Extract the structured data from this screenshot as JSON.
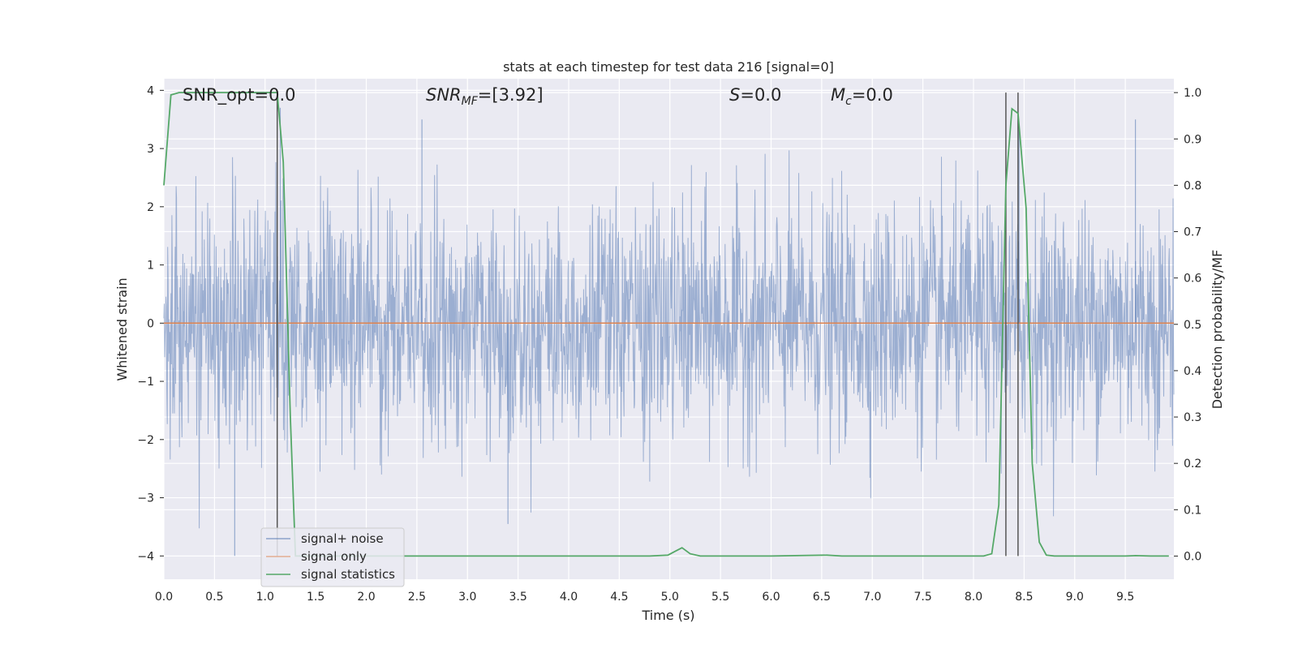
{
  "chart_data": {
    "type": "line",
    "title": "stats at each timestep for test data 216 [signal=0]",
    "xlabel": "Time (s)",
    "ylabel_left": "Whitened strain",
    "ylabel_right": "Detection probability/MF",
    "xlim": [
      0.0,
      9.98
    ],
    "ylim_left": [
      -4.4,
      4.2
    ],
    "ylim_right": [
      -0.05,
      1.03
    ],
    "x_ticks": [
      "0.0",
      "0.5",
      "1.0",
      "1.5",
      "2.0",
      "2.5",
      "3.0",
      "3.5",
      "4.0",
      "4.5",
      "5.0",
      "5.5",
      "6.0",
      "6.5",
      "7.0",
      "7.5",
      "8.0",
      "8.5",
      "9.0",
      "9.5"
    ],
    "y_ticks_left": [
      "4",
      "3",
      "2",
      "1",
      "0",
      "−1",
      "−2",
      "−3",
      "−4"
    ],
    "y_ticks_right": [
      "1.0",
      "0.9",
      "0.8",
      "0.7",
      "0.6",
      "0.5",
      "0.4",
      "0.3",
      "0.2",
      "0.1",
      "0.0"
    ],
    "grid": true,
    "legend_position": "lower-left",
    "background": "#eaeaf2",
    "colors": {
      "signal_noise": "#4c72b0",
      "signal_only": "#dd8452",
      "statistics": "#55a868",
      "marker_lines": "#555555"
    },
    "annotations": {
      "snr_opt": {
        "prefix": "SNR_opt",
        "value": "=0.0"
      },
      "snr_mf": {
        "symbol": "SNR",
        "sub": "MF",
        "value": "=[3.92]"
      },
      "s": {
        "symbol": "S",
        "value": "=0.0"
      },
      "mc": {
        "symbol": "M",
        "sub": "c",
        "value": "=0.0"
      }
    },
    "series": [
      {
        "name": "signal+ noise",
        "axis": "left",
        "style": "noise band",
        "amplitude_std": 1.0,
        "envelope_typical": [
          -1.6,
          1.6
        ],
        "peak_extremes": [
          {
            "x": 0.7,
            "y": -4.0
          },
          {
            "x": 3.4,
            "y": -3.45
          },
          {
            "x": 1.15,
            "y": 3.7
          },
          {
            "x": 9.6,
            "y": 3.5
          },
          {
            "x": 2.55,
            "y": 3.5
          },
          {
            "x": 8.45,
            "y": 3.4
          }
        ]
      },
      {
        "name": "signal only",
        "axis": "left",
        "x": [
          0.0,
          9.98
        ],
        "y": [
          0.0,
          0.0
        ]
      },
      {
        "name": "signal statistics",
        "axis": "right",
        "x": [
          0.0,
          0.07,
          0.15,
          0.3,
          0.6,
          1.0,
          1.12,
          1.18,
          1.25,
          1.3,
          1.5,
          2.0,
          3.0,
          4.0,
          4.8,
          4.98,
          5.05,
          5.12,
          5.2,
          5.3,
          6.0,
          6.55,
          6.7,
          7.5,
          8.1,
          8.18,
          8.25,
          8.32,
          8.38,
          8.44,
          8.52,
          8.58,
          8.65,
          8.72,
          8.8,
          9.0,
          9.5,
          9.6,
          9.75,
          9.93
        ],
        "y": [
          0.8,
          0.995,
          1.0,
          1.0,
          1.0,
          1.0,
          1.0,
          0.85,
          0.3,
          0.0,
          0.0,
          0.0,
          0.0,
          0.0,
          0.0,
          0.002,
          0.01,
          0.018,
          0.005,
          0.0,
          0.0,
          0.002,
          0.0,
          0.0,
          0.0,
          0.005,
          0.11,
          0.8,
          0.965,
          0.955,
          0.75,
          0.2,
          0.03,
          0.002,
          0.0,
          0.0,
          0.0,
          0.001,
          0.0,
          0.0
        ]
      }
    ],
    "vertical_markers_x": [
      1.12,
      8.32,
      8.44
    ]
  }
}
